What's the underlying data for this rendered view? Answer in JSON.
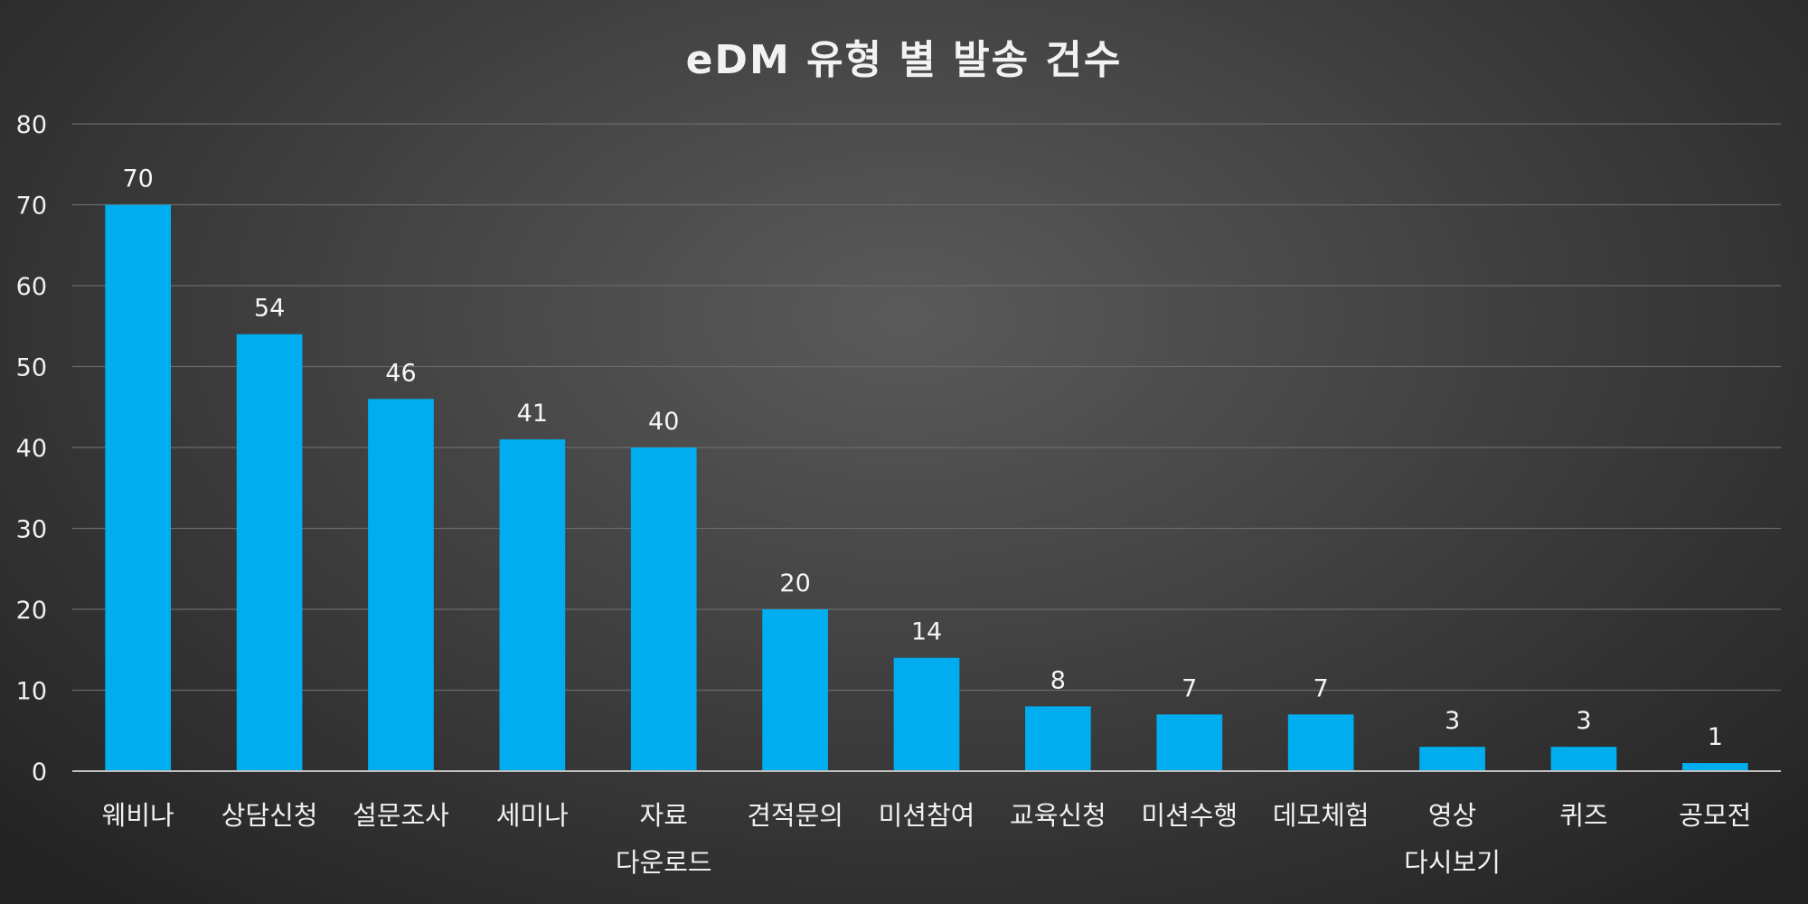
{
  "chart_data": {
    "type": "bar",
    "title": "eDM 유형 별 발송 건수",
    "xlabel": "",
    "ylabel": "",
    "categories": [
      [
        "웨비나"
      ],
      [
        "상담신청"
      ],
      [
        "설문조사"
      ],
      [
        "세미나"
      ],
      [
        "자료",
        "다운로드"
      ],
      [
        "견적문의"
      ],
      [
        "미션참여"
      ],
      [
        "교육신청"
      ],
      [
        "미션수행"
      ],
      [
        "데모체험"
      ],
      [
        "영상",
        "다시보기"
      ],
      [
        "퀴즈"
      ],
      [
        "공모전"
      ]
    ],
    "values": [
      70,
      54,
      46,
      41,
      40,
      20,
      14,
      8,
      7,
      7,
      3,
      3,
      1
    ],
    "ylim": [
      0,
      80
    ],
    "yticks": [
      0,
      10,
      20,
      30,
      40,
      50,
      60,
      70,
      80
    ],
    "grid": true,
    "data_labels": true,
    "legend": "none",
    "colors": {
      "bar": "#00AEEF",
      "text": "#F0F0F0",
      "grid": "#6A6A6A",
      "axis": "#BFBFBF"
    }
  }
}
